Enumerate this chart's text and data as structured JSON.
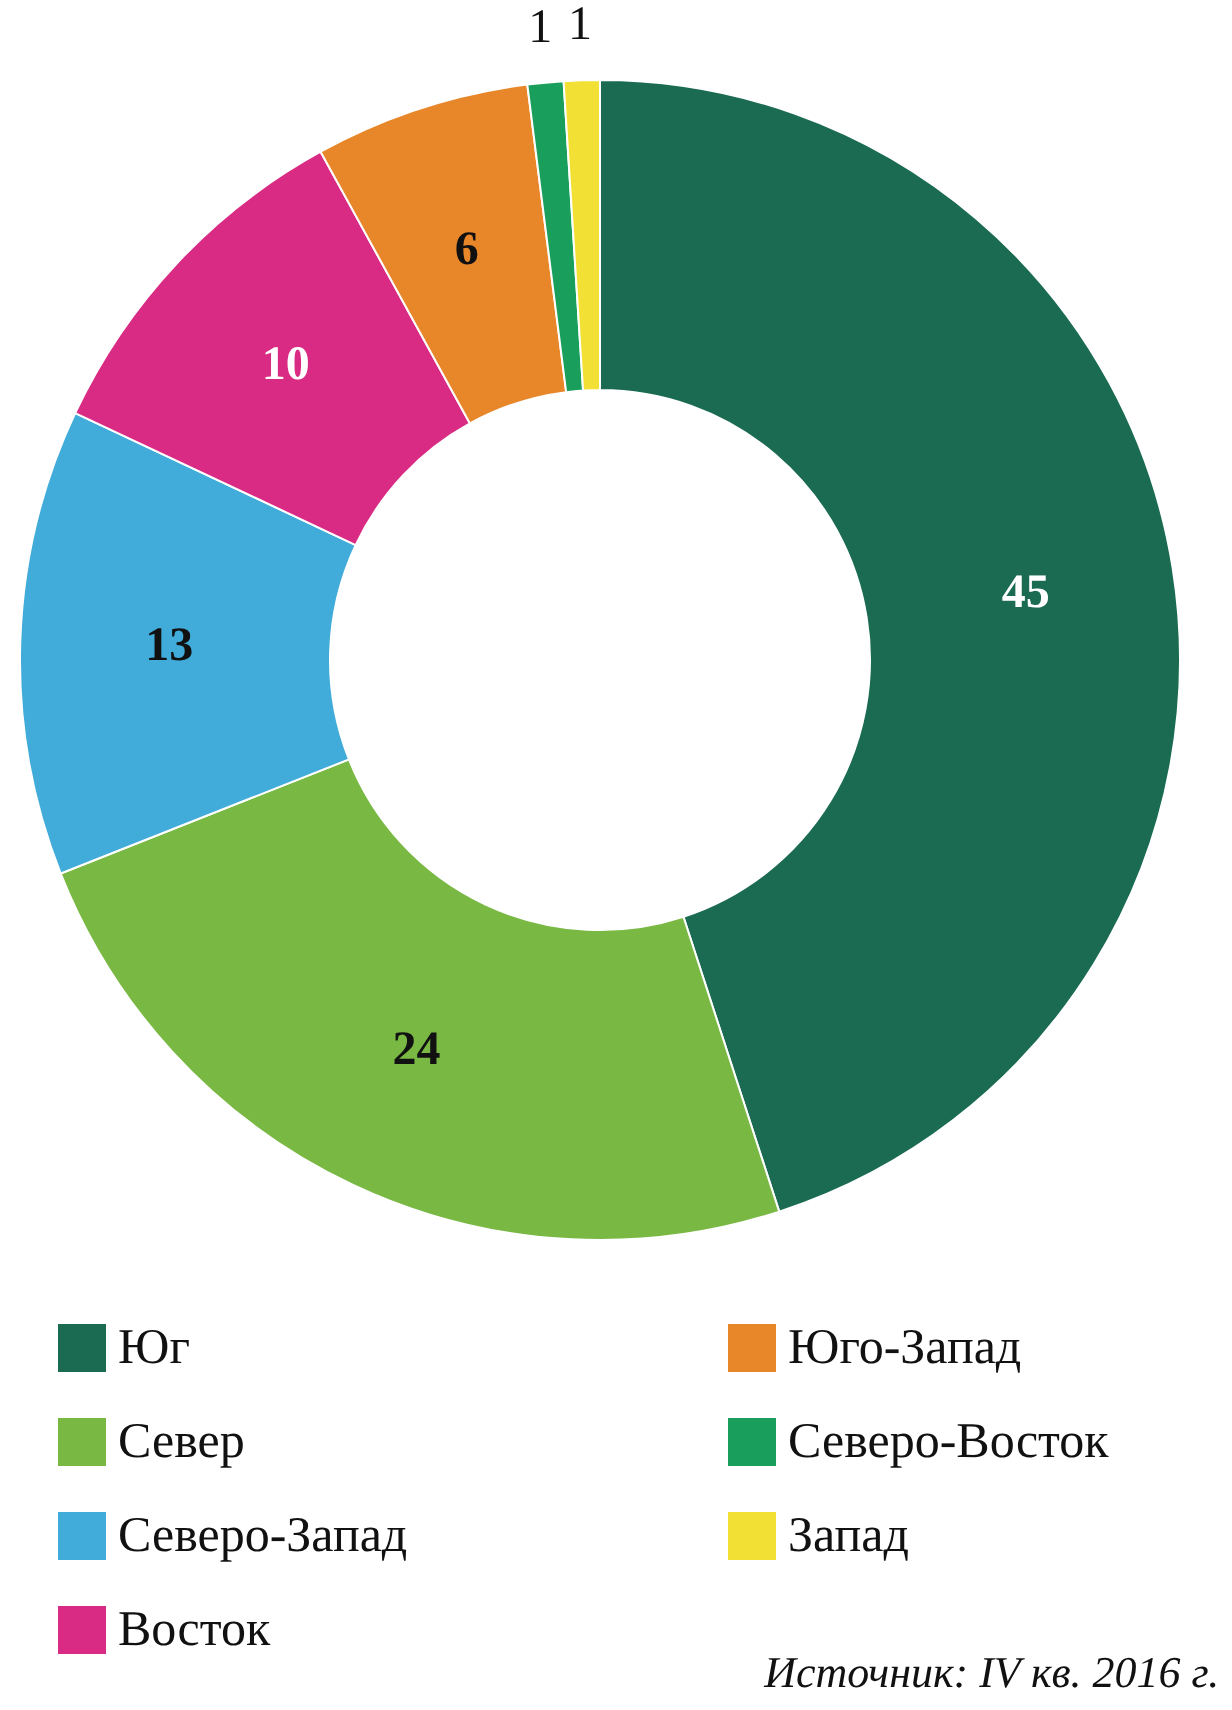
{
  "chart_data": {
    "type": "donut",
    "categories": [
      "Юг",
      "Север",
      "Северо-Запад",
      "Восток",
      "Юго-Запад",
      "Северо-Восток",
      "Запад"
    ],
    "values": [
      45,
      24,
      13,
      10,
      6,
      1,
      1
    ],
    "colors": [
      "#1a6b52",
      "#78b843",
      "#41acd9",
      "#d92a84",
      "#e8862a",
      "#1a9e5c",
      "#f2e034"
    ],
    "data_labels": true,
    "legend": "bottom",
    "annotations": [
      "Источник: IV кв. 2016 г."
    ]
  }
}
